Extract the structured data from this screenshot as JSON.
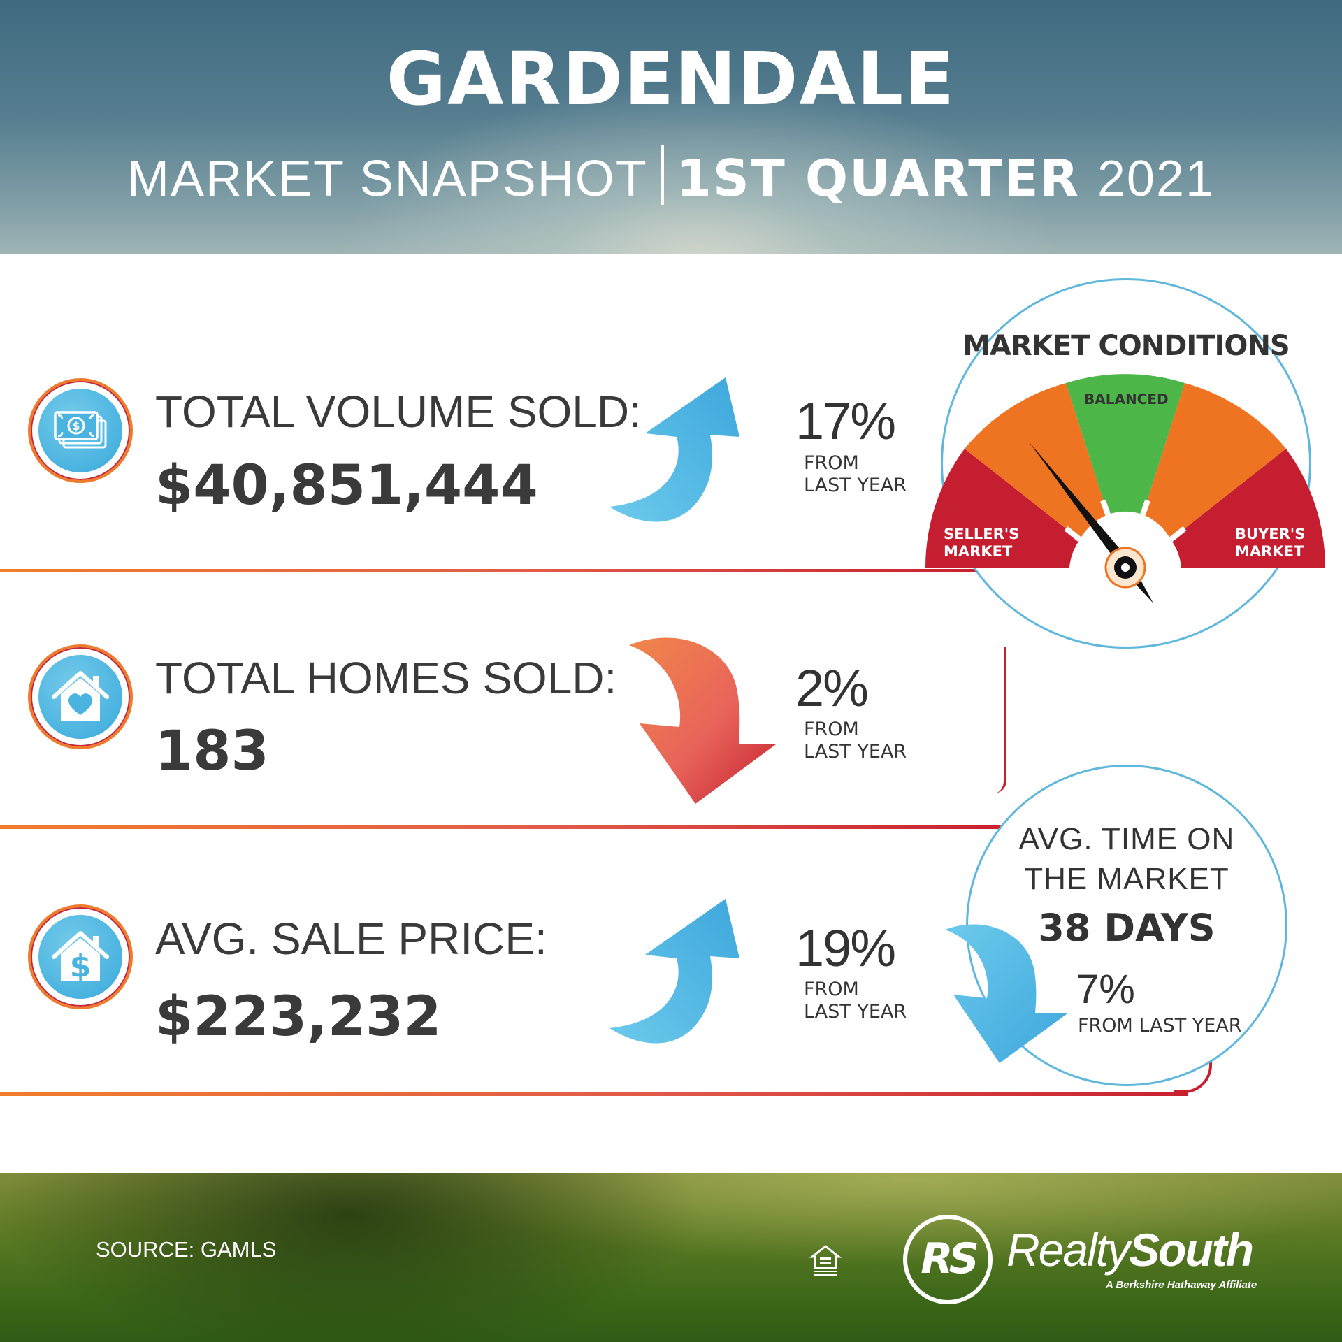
{
  "header": {
    "title": "GARDENDALE",
    "subtitle_part1": "MARKET SNAPSHOT",
    "subtitle_part2": "1ST QUARTER",
    "subtitle_part3": "2021"
  },
  "stats": [
    {
      "label": "TOTAL VOLUME SOLD:",
      "value": "$40,851,444",
      "change_pct": "17%",
      "change_line1": "FROM",
      "change_line2": "LAST YEAR",
      "direction": "up",
      "icon": "money-icon"
    },
    {
      "label": "TOTAL HOMES SOLD:",
      "value": "183",
      "change_pct": "2%",
      "change_line1": "FROM",
      "change_line2": "LAST YEAR",
      "direction": "down",
      "icon": "house-heart-icon"
    },
    {
      "label": "AVG. SALE PRICE:",
      "value": "$223,232",
      "change_pct": "19%",
      "change_line1": "FROM",
      "change_line2": "LAST YEAR",
      "direction": "up",
      "icon": "house-dollar-icon"
    }
  ],
  "market_conditions": {
    "title": "MARKET CONDITIONS",
    "balanced_label": "BALANCED",
    "seller_line1": "SELLER'S",
    "seller_line2": "MARKET",
    "buyer_line1": "BUYER'S",
    "buyer_line2": "MARKET",
    "colors": {
      "red": "#c41e30",
      "orange": "#ef7422",
      "green": "#4cb648"
    }
  },
  "time_on_market": {
    "title_line1": "AVG. TIME ON",
    "title_line2": "THE MARKET",
    "value": "38 DAYS",
    "change_pct": "7%",
    "change_text": "FROM LAST YEAR",
    "direction": "down"
  },
  "footer": {
    "source": "SOURCE: GAMLS",
    "logo_initials": "RS",
    "brand_part1": "Realty",
    "brand_part2": "South",
    "brand_tagline": "A Berkshire Hathaway Affiliate",
    "equal_housing_icon": "equal-housing-icon"
  },
  "colors": {
    "up_blue": "#4ab3e0",
    "down_orange": "#ef7b4c",
    "down_red": "#c8202f",
    "rule_orange": "#f07d2c"
  }
}
